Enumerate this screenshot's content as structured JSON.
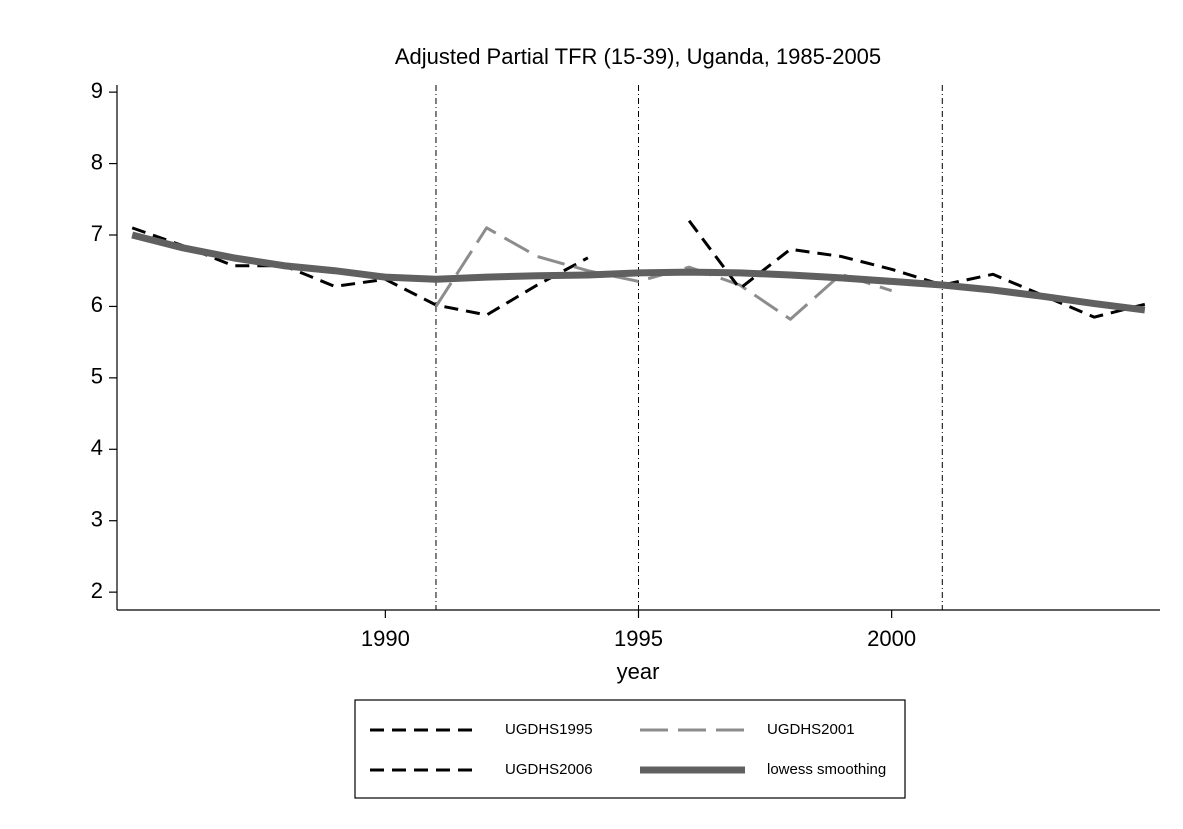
{
  "chart_data": {
    "type": "line",
    "title": "Adjusted Partial TFR (15-39), Uganda, 1985-2005",
    "x_label": "year",
    "x": [
      1985,
      1986,
      1987,
      1988,
      1989,
      1990,
      1991,
      1992,
      1993,
      1994,
      1995,
      1996,
      1997,
      1998,
      1999,
      2000,
      2001,
      2002,
      2003,
      2004,
      2005
    ],
    "series": [
      {
        "name": "UGDHS1995",
        "color": "#000000",
        "style": "dashed",
        "values": [
          7.1,
          6.85,
          6.57,
          6.57,
          6.28,
          6.38,
          6.02,
          5.88,
          6.3,
          6.68,
          null,
          null,
          null,
          null,
          null,
          null,
          null,
          null,
          null,
          null,
          null
        ]
      },
      {
        "name": "UGDHS2001",
        "color": "#8c8c8c",
        "style": "longdash",
        "values": [
          null,
          null,
          null,
          null,
          null,
          null,
          6.0,
          7.1,
          6.7,
          6.5,
          6.35,
          6.55,
          6.3,
          5.82,
          6.45,
          6.22,
          null,
          null,
          null,
          null,
          null
        ]
      },
      {
        "name": "UGDHS2006",
        "color": "#000000",
        "style": "dashed",
        "values": [
          null,
          null,
          null,
          null,
          null,
          null,
          null,
          null,
          null,
          null,
          null,
          7.2,
          6.25,
          6.8,
          6.7,
          6.52,
          6.3,
          6.45,
          6.15,
          5.85,
          6.03
        ]
      },
      {
        "name": "lowess smoothing",
        "color": "#606060",
        "style": "thick",
        "values": [
          7.0,
          6.82,
          6.68,
          6.57,
          6.5,
          6.41,
          6.38,
          6.41,
          6.43,
          6.44,
          6.47,
          6.48,
          6.47,
          6.44,
          6.4,
          6.35,
          6.3,
          6.23,
          6.14,
          6.04,
          5.95
        ]
      }
    ],
    "xlines": [
      1991,
      1995,
      2001
    ],
    "xlim": [
      1984.7,
      2005.3
    ],
    "xticks": [
      1990,
      1995,
      2000
    ],
    "ylim": [
      1.75,
      9.1
    ],
    "yticks": [
      2,
      3,
      4,
      5,
      6,
      7,
      8,
      9
    ],
    "grid": false,
    "legend": "bottom"
  }
}
